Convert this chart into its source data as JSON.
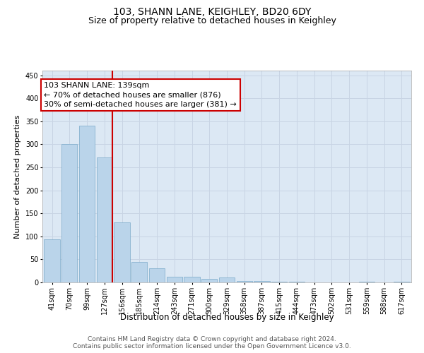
{
  "title": "103, SHANN LANE, KEIGHLEY, BD20 6DY",
  "subtitle": "Size of property relative to detached houses in Keighley",
  "xlabel": "Distribution of detached houses by size in Keighley",
  "ylabel": "Number of detached properties",
  "categories": [
    "41sqm",
    "70sqm",
    "99sqm",
    "127sqm",
    "156sqm",
    "185sqm",
    "214sqm",
    "243sqm",
    "271sqm",
    "300sqm",
    "329sqm",
    "358sqm",
    "387sqm",
    "415sqm",
    "444sqm",
    "473sqm",
    "502sqm",
    "531sqm",
    "559sqm",
    "588sqm",
    "617sqm"
  ],
  "values": [
    93,
    301,
    340,
    272,
    130,
    45,
    30,
    13,
    13,
    8,
    11,
    3,
    3,
    1,
    2,
    0,
    0,
    0,
    1,
    0,
    1
  ],
  "bar_color": "#bad4ea",
  "bar_edge_color": "#7aaaca",
  "vline_color": "#cc0000",
  "vline_index": 3,
  "annotation_line1": "103 SHANN LANE: 139sqm",
  "annotation_line2": "← 70% of detached houses are smaller (876)",
  "annotation_line3": "30% of semi-detached houses are larger (381) →",
  "annotation_box_edgecolor": "#cc0000",
  "ylim": [
    0,
    460
  ],
  "yticks": [
    0,
    50,
    100,
    150,
    200,
    250,
    300,
    350,
    400,
    450
  ],
  "grid_color": "#c8d4e4",
  "bg_color": "#dce8f4",
  "footer_line1": "Contains HM Land Registry data © Crown copyright and database right 2024.",
  "footer_line2": "Contains public sector information licensed under the Open Government Licence v3.0.",
  "title_fontsize": 10,
  "subtitle_fontsize": 9,
  "xlabel_fontsize": 8.5,
  "ylabel_fontsize": 8,
  "tick_fontsize": 7,
  "annotation_fontsize": 8,
  "footer_fontsize": 6.5
}
